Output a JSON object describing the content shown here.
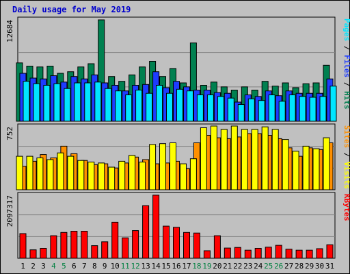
{
  "title": "Daily usage for May 2019",
  "colors": {
    "pages": "#00e6ff",
    "files": "#1e3cff",
    "hits": "#008050",
    "visits": "#ffff00",
    "sites": "#ff9000",
    "kbytes": "#ff0000",
    "weekend_day_label": "#008040",
    "weekday_day_label": "#000000",
    "plot_background": "#c0c0c0",
    "grid": "#808080"
  },
  "chart_data": [
    {
      "type": "bar",
      "panel": "hits-files-pages",
      "y_axis_max_label": "12684",
      "series_labels": [
        "Pages",
        "/",
        "Files",
        "/",
        "Hits"
      ],
      "categories": [
        "1",
        "2",
        "3",
        "4",
        "5",
        "6",
        "7",
        "8",
        "9",
        "10",
        "11",
        "12",
        "13",
        "14",
        "15",
        "16",
        "17",
        "18",
        "19",
        "20",
        "21",
        "22",
        "23",
        "24",
        "25",
        "26",
        "27",
        "28",
        "29",
        "30",
        "31"
      ],
      "ylim": [
        0,
        12684
      ],
      "series": [
        {
          "name": "Hits",
          "values": [
            7300,
            6900,
            6800,
            6900,
            6000,
            6200,
            6800,
            7200,
            12684,
            5600,
            5000,
            5800,
            6800,
            7500,
            5600,
            6600,
            4800,
            9800,
            4500,
            4900,
            4300,
            3900,
            4300,
            3900,
            5000,
            4400,
            4800,
            4200,
            4700,
            4800,
            7000
          ]
        },
        {
          "name": "Files",
          "values": [
            6000,
            5400,
            5300,
            5700,
            4900,
            5600,
            5300,
            5800,
            4800,
            4500,
            3800,
            4500,
            4600,
            6200,
            4200,
            5000,
            4300,
            3900,
            3900,
            3600,
            3500,
            2400,
            3300,
            3100,
            3800,
            3200,
            3800,
            3500,
            3500,
            3500,
            5300
          ]
        },
        {
          "name": "Pages",
          "values": [
            5000,
            4700,
            4500,
            4700,
            4100,
            4800,
            4800,
            4900,
            4100,
            3800,
            3300,
            3900,
            3500,
            4500,
            3500,
            4000,
            3800,
            3300,
            3300,
            3100,
            2900,
            2100,
            2800,
            2600,
            3300,
            2500,
            3300,
            3100,
            3000,
            3100,
            4400
          ]
        }
      ]
    },
    {
      "type": "bar",
      "panel": "visits-sites",
      "y_axis_max_label": "752",
      "series_labels": [
        "Sites",
        "/",
        "Visits"
      ],
      "categories": [
        "1",
        "2",
        "3",
        "4",
        "5",
        "6",
        "7",
        "8",
        "9",
        "10",
        "11",
        "12",
        "13",
        "14",
        "15",
        "16",
        "17",
        "18",
        "19",
        "20",
        "21",
        "22",
        "23",
        "24",
        "25",
        "26",
        "27",
        "28",
        "29",
        "30",
        "31"
      ],
      "ylim": [
        0,
        752
      ],
      "series": [
        {
          "name": "Visits",
          "values": [
            280,
            340,
            420,
            380,
            520,
            430,
            350,
            300,
            310,
            260,
            320,
            390,
            360,
            310,
            320,
            340,
            250,
            560,
            650,
            620,
            610,
            630,
            670,
            670,
            650,
            610,
            500,
            400,
            500,
            480,
            560
          ]
        },
        {
          "name": "Sites",
          "values": [
            400,
            400,
            380,
            360,
            440,
            400,
            350,
            330,
            320,
            270,
            340,
            410,
            330,
            540,
            550,
            560,
            310,
            370,
            740,
            760,
            720,
            760,
            720,
            720,
            750,
            720,
            600,
            460,
            520,
            490,
            620
          ]
        }
      ]
    },
    {
      "type": "bar",
      "panel": "kbytes",
      "y_axis_max_label": "2097317",
      "series_labels": [
        "KBytes"
      ],
      "categories": [
        "1",
        "2",
        "3",
        "4",
        "5",
        "6",
        "7",
        "8",
        "9",
        "10",
        "11",
        "12",
        "13",
        "14",
        "15",
        "16",
        "17",
        "18",
        "19",
        "20",
        "21",
        "22",
        "23",
        "24",
        "25",
        "26",
        "27",
        "28",
        "29",
        "30",
        "31"
      ],
      "ylim": [
        0,
        2097317
      ],
      "series": [
        {
          "name": "KBytes",
          "values": [
            820000,
            280000,
            330000,
            750000,
            860000,
            900000,
            900000,
            420000,
            550000,
            1200000,
            680000,
            920000,
            1750000,
            2100000,
            1070000,
            1030000,
            860000,
            840000,
            250000,
            750000,
            340000,
            360000,
            270000,
            330000,
            370000,
            430000,
            300000,
            270000,
            270000,
            320000,
            450000
          ]
        }
      ]
    }
  ],
  "weekend_days": [
    4,
    5,
    11,
    12,
    18,
    19,
    25,
    26
  ]
}
